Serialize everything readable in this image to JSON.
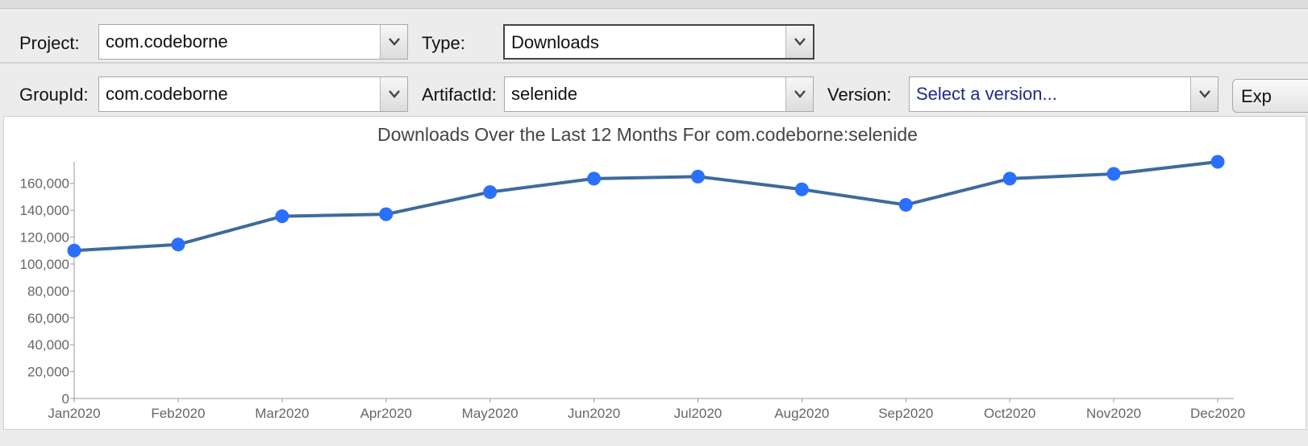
{
  "toolbar1": {
    "project_label": "Project:",
    "project_value": "com.codeborne",
    "type_label": "Type:",
    "type_value": "Downloads"
  },
  "toolbar2": {
    "groupid_label": "GroupId:",
    "groupid_value": "com.codeborne",
    "artifactid_label": "ArtifactId:",
    "artifactid_value": "selenide",
    "version_label": "Version:",
    "version_placeholder": "Select a version...",
    "export_button_label": "Exp"
  },
  "colors": {
    "line": "#3f6a9c",
    "point": "#2a6fff",
    "axis_text": "#666666",
    "title_text": "#444444"
  },
  "chart_data": {
    "type": "line",
    "title": "Downloads Over the Last 12 Months For com.codeborne:selenide",
    "categories": [
      "Jan2020",
      "Feb2020",
      "Mar2020",
      "Apr2020",
      "May2020",
      "Jun2020",
      "Jul2020",
      "Aug2020",
      "Sep2020",
      "Oct2020",
      "Nov2020",
      "Dec2020"
    ],
    "values": [
      110000,
      114500,
      135500,
      137000,
      153500,
      163500,
      165000,
      155500,
      144000,
      163500,
      167000,
      176000
    ],
    "y_ticks": [
      "0",
      "20,000",
      "40,000",
      "60,000",
      "80,000",
      "100,000",
      "120,000",
      "140,000",
      "160,000"
    ],
    "ylim": [
      0,
      176000
    ],
    "grid": false,
    "legend": "none"
  }
}
